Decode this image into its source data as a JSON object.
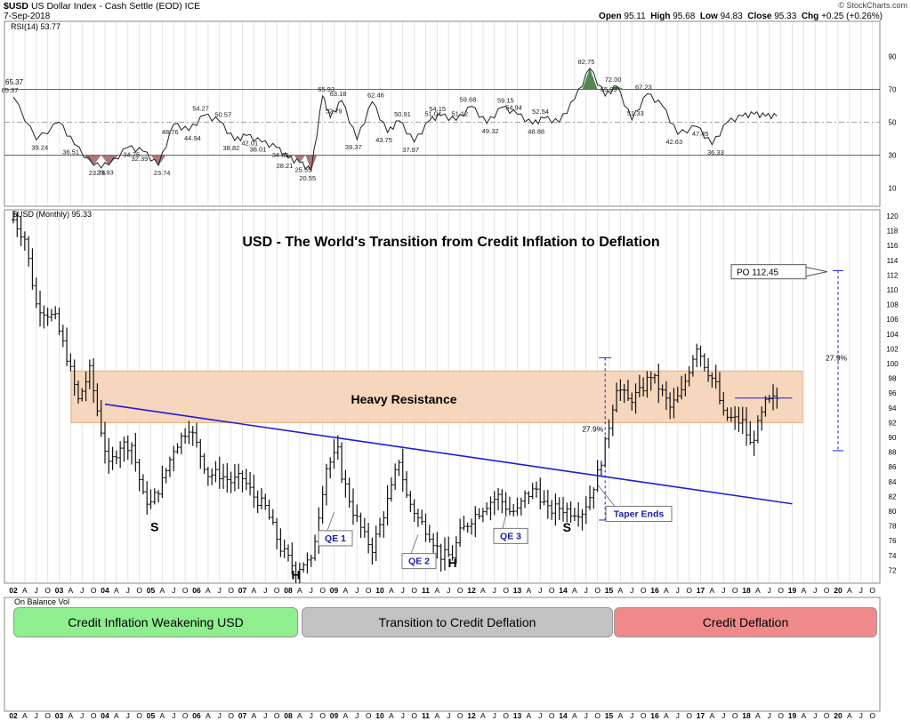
{
  "header": {
    "symbol": "$USD",
    "name": "US Dollar Index - Cash Settle (EOD)",
    "exchange": "ICE",
    "date": "7-Sep-2018",
    "open_label": "Open",
    "open": "95.11",
    "high_label": "High",
    "high": "95.68",
    "low_label": "Low",
    "low": "94.83",
    "close_label": "Close",
    "close": "95.33",
    "chg_label": "Chg",
    "chg": "+0.25 (+0.26%)",
    "watermark": "© StockCharts.com"
  },
  "rsi_panel": {
    "legend": "RSI(14) 53.77",
    "left_value": "65.37",
    "y_ticks": [
      "90",
      "70",
      "50",
      "30",
      "10"
    ]
  },
  "price_panel": {
    "legend": "$USD (Monthly) 95.33",
    "title": "USD - The World's Transition from Credit Inflation to Deflation",
    "resistance_label": "Heavy Resistance",
    "po_label": "PO 112.45",
    "pct_left": "27.9%",
    "pct_right": "27.9%",
    "taper_label": "Taper Ends",
    "y_ticks": [
      "120",
      "118",
      "116",
      "114",
      "112",
      "110",
      "108",
      "106",
      "104",
      "102",
      "100",
      "98",
      "96",
      "94",
      "92",
      "90",
      "88",
      "86",
      "84",
      "82",
      "80",
      "78",
      "76",
      "74",
      "72"
    ]
  },
  "x_axis_labels": [
    "02",
    "A",
    "J",
    "O",
    "03",
    "A",
    "J",
    "O",
    "04",
    "A",
    "J",
    "O",
    "05",
    "A",
    "J",
    "O",
    "06",
    "A",
    "J",
    "O",
    "07",
    "A",
    "J",
    "O",
    "08",
    "A",
    "J",
    "O",
    "09",
    "A",
    "J",
    "O",
    "10",
    "A",
    "J",
    "O",
    "11",
    "A",
    "J",
    "O",
    "12",
    "A",
    "J",
    "O",
    "13",
    "A",
    "J",
    "O",
    "14",
    "A",
    "J",
    "O",
    "15",
    "A",
    "J",
    "O",
    "16",
    "A",
    "J",
    "O",
    "17",
    "A",
    "J",
    "O",
    "18",
    "A",
    "J",
    "O",
    "19",
    "A",
    "J",
    "O",
    "20",
    "A",
    "J",
    "O"
  ],
  "obv_panel": {
    "legend": "On Balance Vol",
    "phases": [
      {
        "label": "Credit Inflation Weakening USD",
        "color": "#8fef8f"
      },
      {
        "label": "Transition to Credit Deflation",
        "color": "#c2c2c2"
      },
      {
        "label": "Credit Deflation",
        "color": "#f08a8a"
      }
    ]
  },
  "colors": {
    "resistance_fill": "#f6d3b6",
    "trendline": "#1c1cd8",
    "annotation": "#1a1aa8",
    "overbought": "#3f7a3f",
    "oversold": "#9c6060"
  },
  "chart_data": [
    {
      "type": "line",
      "panel": "RSI",
      "name": "RSI(14)",
      "ylim": [
        0,
        100
      ],
      "reference_lines": [
        70,
        50,
        30
      ],
      "x": [
        "2002-01",
        "2002-07",
        "2003-01",
        "2003-05",
        "2003-10",
        "2004-02",
        "2004-07",
        "2004-11",
        "2005-03",
        "2005-07",
        "2005-11",
        "2006-03",
        "2006-07",
        "2006-11",
        "2007-02",
        "2007-06",
        "2007-10",
        "2008-01",
        "2008-04",
        "2008-07",
        "2008-10",
        "2008-12",
        "2009-03",
        "2009-07",
        "2009-11",
        "2010-03",
        "2010-06",
        "2010-10",
        "2011-02",
        "2011-05",
        "2011-09",
        "2012-01",
        "2012-05",
        "2012-09",
        "2013-01",
        "2013-05",
        "2013-08",
        "2013-12",
        "2014-04",
        "2014-08",
        "2014-12",
        "2015-03",
        "2015-07",
        "2015-11",
        "2016-03",
        "2016-07",
        "2016-12",
        "2017-04",
        "2017-08",
        "2017-12",
        "2018-03",
        "2018-06",
        "2018-09"
      ],
      "values": [
        65.37,
        39.24,
        50,
        36.51,
        23.76,
        23.93,
        34.75,
        32.39,
        23.74,
        48.76,
        44.94,
        54.27,
        50.57,
        38.82,
        42.01,
        38.01,
        34.65,
        28.21,
        25.55,
        20.55,
        65.93,
        52.79,
        63.18,
        39.37,
        62.46,
        43.75,
        50.91,
        37.97,
        51.04,
        54.15,
        51.12,
        59.68,
        49.32,
        59.15,
        54.94,
        48.88,
        52.54,
        50,
        64,
        82.75,
        65.89,
        72,
        51.33,
        67.23,
        60,
        42.63,
        47.45,
        36.33,
        50,
        53.77,
        55,
        53.77,
        53.77
      ],
      "labeled_points": [
        "65.37",
        "39.24",
        "36.51",
        "23.76",
        "23.93",
        "34.75",
        "32.39",
        "23.74",
        "48.76",
        "44.94",
        "54.27",
        "50.57",
        "38.82",
        "42.01",
        "38.01",
        "34.65",
        "28.21",
        "25.55",
        "20.55",
        "65.93",
        "63.18",
        "52.79",
        "39.37",
        "62.46",
        "43.75",
        "50.91",
        "37.97",
        "51.04",
        "54.15",
        "51.12",
        "59.68",
        "59.15",
        "54.94",
        "49.32",
        "52.54",
        "48.88",
        "82.75",
        "65.89",
        "72.00",
        "51.33",
        "67.23",
        "47.45",
        "42.63",
        "36.33"
      ]
    },
    {
      "type": "bar",
      "panel": "Price",
      "name": "$USD (Monthly)",
      "ylim": [
        71,
        121
      ],
      "x_start": "2002-01",
      "x_end": "2018-09",
      "close_path": [
        [
          "2002-01",
          119.5
        ],
        [
          "2002-04",
          117
        ],
        [
          "2002-07",
          108
        ],
        [
          "2002-12",
          106
        ],
        [
          "2003-03",
          101
        ],
        [
          "2003-06",
          95
        ],
        [
          "2003-09",
          99
        ],
        [
          "2003-12",
          91
        ],
        [
          "2004-02",
          86
        ],
        [
          "2004-05",
          89
        ],
        [
          "2004-08",
          89
        ],
        [
          "2004-11",
          82
        ],
        [
          "2005-01",
          81
        ],
        [
          "2005-04",
          84
        ],
        [
          "2005-07",
          88.5
        ],
        [
          "2005-11",
          91.5
        ],
        [
          "2006-01",
          89
        ],
        [
          "2006-04",
          85
        ],
        [
          "2006-07",
          85
        ],
        [
          "2006-10",
          84
        ],
        [
          "2007-01",
          84.5
        ],
        [
          "2007-04",
          82
        ],
        [
          "2007-07",
          80.5
        ],
        [
          "2007-11",
          75
        ],
        [
          "2008-03",
          72
        ],
        [
          "2008-05",
          73
        ],
        [
          "2008-07",
          73
        ],
        [
          "2008-10",
          83
        ],
        [
          "2008-11",
          86
        ],
        [
          "2009-02",
          88
        ],
        [
          "2009-03",
          85
        ],
        [
          "2009-06",
          80
        ],
        [
          "2009-09",
          76.5
        ],
        [
          "2009-11",
          75
        ],
        [
          "2010-01",
          78
        ],
        [
          "2010-04",
          83
        ],
        [
          "2010-06",
          87
        ],
        [
          "2010-08",
          82
        ],
        [
          "2010-11",
          79
        ],
        [
          "2011-02",
          77
        ],
        [
          "2011-05",
          74
        ],
        [
          "2011-08",
          74
        ],
        [
          "2011-10",
          77
        ],
        [
          "2012-01",
          79
        ],
        [
          "2012-05",
          81
        ],
        [
          "2012-08",
          82
        ],
        [
          "2012-11",
          80
        ],
        [
          "2013-01",
          80
        ],
        [
          "2013-03",
          82
        ],
        [
          "2013-06",
          83
        ],
        [
          "2013-09",
          80
        ],
        [
          "2013-12",
          80.5
        ],
        [
          "2014-03",
          80
        ],
        [
          "2014-06",
          80
        ],
        [
          "2014-08",
          82
        ],
        [
          "2014-10",
          85
        ],
        [
          "2014-12",
          89
        ],
        [
          "2015-03",
          97
        ],
        [
          "2015-06",
          95
        ],
        [
          "2015-09",
          96
        ],
        [
          "2015-12",
          98.5
        ],
        [
          "2016-03",
          96
        ],
        [
          "2016-05",
          94
        ],
        [
          "2016-08",
          96
        ],
        [
          "2016-11",
          101
        ],
        [
          "2016-12",
          102.5
        ],
        [
          "2017-02",
          100
        ],
        [
          "2017-05",
          97
        ],
        [
          "2017-07",
          93
        ],
        [
          "2017-09",
          92.5
        ],
        [
          "2017-12",
          92
        ],
        [
          "2018-02",
          89
        ],
        [
          "2018-04",
          91.5
        ],
        [
          "2018-06",
          94.5
        ],
        [
          "2018-09",
          95.33
        ]
      ],
      "heavy_resistance_zone": [
        92,
        99
      ],
      "trendline": {
        "from": [
          "2004-01",
          94.5
        ],
        "to": [
          "2019-01",
          81
        ]
      },
      "po_target": 112.45,
      "annotations": [
        "S",
        "H",
        "S",
        "QE 1",
        "QE 2",
        "QE 3",
        "H",
        "Taper Ends",
        "27.9%",
        "27.9%",
        "PO 112.45",
        "Heavy Resistance"
      ]
    }
  ]
}
